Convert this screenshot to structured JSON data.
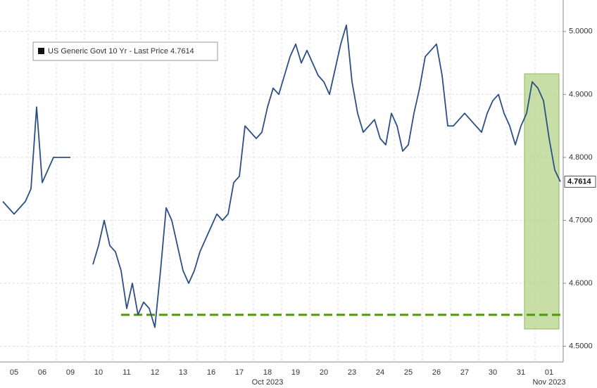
{
  "chart_data": {
    "type": "line",
    "categories": [
      null,
      null,
      "05",
      null,
      null,
      null,
      null,
      "06",
      null,
      null,
      null,
      null,
      "09",
      null,
      null,
      null,
      null,
      "10",
      null,
      null,
      null,
      null,
      "11",
      null,
      null,
      null,
      null,
      "12",
      null,
      null,
      null,
      null,
      "13",
      null,
      null,
      null,
      null,
      "16",
      null,
      null,
      null,
      null,
      "17",
      null,
      null,
      null,
      null,
      "18",
      null,
      null,
      null,
      null,
      "19",
      null,
      null,
      null,
      null,
      "20",
      null,
      null,
      null,
      null,
      "23",
      null,
      null,
      null,
      null,
      "24",
      null,
      null,
      null,
      null,
      "25",
      null,
      null,
      null,
      null,
      "26",
      null,
      null,
      null,
      null,
      "27",
      null,
      null,
      null,
      null,
      "30",
      null,
      null,
      null,
      null,
      "31",
      null,
      null,
      null,
      null,
      "01",
      null,
      null
    ],
    "months": [
      "Oct 2023",
      "Nov 2023"
    ],
    "series": [
      {
        "name": "US Generic Govt 10 Yr - Last Price 4.7614",
        "color": "#2c4f86",
        "values": [
          4.73,
          4.72,
          4.71,
          4.72,
          4.73,
          4.75,
          4.88,
          4.76,
          4.78,
          4.8,
          4.8,
          4.8,
          4.8,
          null,
          null,
          null,
          4.63,
          4.66,
          4.7,
          4.66,
          4.65,
          4.62,
          4.56,
          4.6,
          4.55,
          4.57,
          4.56,
          4.53,
          4.62,
          4.72,
          4.7,
          4.66,
          4.62,
          4.6,
          4.62,
          4.65,
          4.67,
          4.69,
          4.71,
          4.7,
          4.71,
          4.76,
          4.77,
          4.85,
          4.84,
          4.83,
          4.84,
          4.88,
          4.91,
          4.9,
          4.93,
          4.96,
          4.98,
          4.95,
          4.97,
          4.95,
          4.93,
          4.92,
          4.9,
          4.94,
          4.98,
          5.01,
          4.92,
          4.87,
          4.84,
          4.85,
          4.86,
          4.83,
          4.82,
          4.87,
          4.85,
          4.81,
          4.82,
          4.87,
          4.91,
          4.96,
          4.97,
          4.98,
          4.93,
          4.85,
          4.85,
          4.86,
          4.87,
          4.86,
          4.85,
          4.84,
          4.87,
          4.89,
          4.9,
          4.87,
          4.85,
          4.82,
          4.85,
          4.87,
          4.92,
          4.91,
          4.89,
          4.83,
          4.78,
          4.7614
        ]
      }
    ],
    "reference_line": {
      "value": 4.55,
      "color": "#4e9a06"
    },
    "ylim": [
      4.475,
      5.05
    ],
    "yticks": [
      {
        "value": 4.5,
        "label": "4.5000"
      },
      {
        "value": 4.6,
        "label": "4.6000"
      },
      {
        "value": 4.7,
        "label": "4.7000"
      },
      {
        "value": 4.8,
        "label": "4.8000"
      },
      {
        "value": 4.9,
        "label": "4.9000"
      },
      {
        "value": 5.0,
        "label": "5.0000"
      }
    ],
    "grid": true
  }
}
